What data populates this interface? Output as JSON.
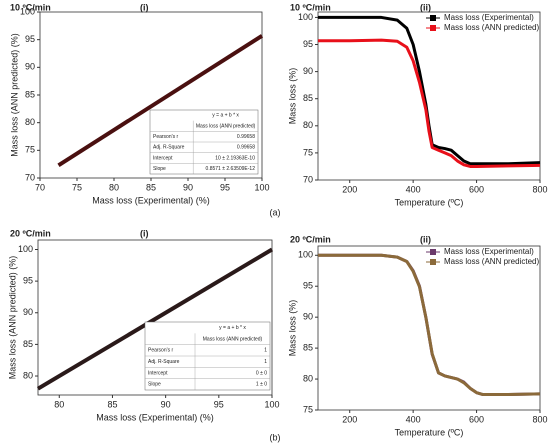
{
  "panel_labels": [
    "(a)",
    "(b)"
  ],
  "chart_data": [
    {
      "type": "parity",
      "title": "10 ºC/min",
      "subtitle": "(i)",
      "x_label": "Mass loss (Experimental) (%)",
      "y_label": "Mass loss (ANN predicted) (%)",
      "x": [
        72.5,
        100
      ],
      "values": [
        72.3,
        95.7
      ],
      "color": "#4a1010",
      "xlim": [
        70,
        100
      ],
      "xticks": [
        70,
        75,
        80,
        85,
        90,
        95,
        100
      ],
      "ylim": [
        70,
        100
      ],
      "yticks": [
        70,
        75,
        80,
        85,
        90,
        95,
        100
      ],
      "stats_table": {
        "equation": "y = a + b * x",
        "column": "Mass loss (ANN predicted)",
        "rows": [
          [
            "Pearson's r",
            "0.99658"
          ],
          [
            "Adj. R-Square",
            "0.99658"
          ],
          [
            "Intercept",
            "10 ± 2.19363E-10"
          ],
          [
            "Slope",
            "0.8571 ± 2.63509E-12"
          ]
        ]
      }
    },
    {
      "type": "line",
      "title": "10 ºC/min",
      "subtitle": "(ii)",
      "x_label": "Temperature (ºC)",
      "y_label": "Mass loss (%)",
      "x": [
        100,
        200,
        300,
        350,
        380,
        400,
        420,
        440,
        450,
        460,
        480,
        500,
        520,
        540,
        560,
        580,
        600,
        700,
        800
      ],
      "series": [
        {
          "name": "Mass loss (Experimental)",
          "color": "#000000",
          "values": [
            100,
            100,
            100,
            99.5,
            98,
            95,
            90,
            84,
            80,
            76.5,
            76,
            75.8,
            75.5,
            74.5,
            73.5,
            73,
            73,
            73,
            73.2
          ]
        },
        {
          "name": "Mass loss (ANN predicted)",
          "color": "#e8101a",
          "values": [
            95.7,
            95.7,
            95.8,
            95.6,
            94.5,
            92,
            88,
            83,
            79,
            76,
            75.5,
            75,
            74.5,
            73.5,
            72.8,
            72.5,
            72.5,
            72.6,
            72.7
          ]
        }
      ],
      "xlim": [
        100,
        800
      ],
      "xticks": [
        200,
        400,
        600,
        800
      ],
      "ylim": [
        70,
        101
      ],
      "yticks": [
        70,
        75,
        80,
        85,
        90,
        95,
        100
      ],
      "legend": "top-right"
    },
    {
      "type": "parity",
      "title": "20 ºC/min",
      "subtitle": "(i)",
      "x_label": "Mass loss (Experimental) (%)",
      "y_label": "Mass loss (ANN predicted) (%)",
      "x": [
        78,
        100
      ],
      "values": [
        78,
        100
      ],
      "color": "#2a1a1a",
      "xlim": [
        78,
        100
      ],
      "xticks": [
        80,
        85,
        90,
        95,
        100
      ],
      "ylim": [
        77,
        101.5
      ],
      "yticks": [
        80,
        85,
        90,
        95,
        100
      ],
      "stats_table": {
        "equation": "y = a + b * x",
        "column": "Mass loss (ANN predicted)",
        "rows": [
          [
            "Pearson's r",
            "1"
          ],
          [
            "Adj. R-Square",
            "1"
          ],
          [
            "Intercept",
            "0 ± 0"
          ],
          [
            "Slope",
            "1 ± 0"
          ]
        ]
      }
    },
    {
      "type": "line",
      "title": "20 ºC/min",
      "subtitle": "(ii)",
      "x_label": "Temperature (ºC)",
      "y_label": "Mass loss (%)",
      "x": [
        100,
        200,
        300,
        350,
        380,
        400,
        420,
        440,
        460,
        480,
        500,
        540,
        560,
        580,
        600,
        620,
        700,
        800
      ],
      "series": [
        {
          "name": "Mass loss (Experimental)",
          "color": "#6b3a6b",
          "values": [
            100,
            100,
            100,
            99.7,
            99,
            97.5,
            95,
            90,
            84,
            81,
            80.5,
            80,
            79.5,
            78.5,
            77.8,
            77.5,
            77.5,
            77.6
          ]
        },
        {
          "name": "Mass loss (ANN predicted)",
          "color": "#8b6a3a",
          "values": [
            100,
            100,
            100,
            99.7,
            99,
            97.4,
            94.9,
            90,
            84.1,
            81,
            80.5,
            80,
            79.4,
            78.5,
            77.8,
            77.5,
            77.5,
            77.6
          ]
        }
      ],
      "xlim": [
        100,
        800
      ],
      "xticks": [
        200,
        400,
        600,
        800
      ],
      "ylim": [
        75,
        101.5
      ],
      "yticks": [
        75,
        80,
        85,
        90,
        95,
        100
      ],
      "legend": "top-right"
    }
  ]
}
